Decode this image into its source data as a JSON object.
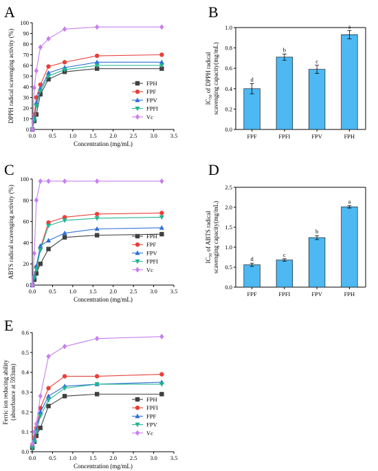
{
  "chart_data": [
    {
      "type": "line",
      "panel_letter": "A",
      "xlabel": "Concentration (mg/mL)",
      "ylabel": "DPPH radical scavenging activity (%)",
      "xlim": [
        0,
        3.5
      ],
      "ylim": [
        0,
        100
      ],
      "xticks": [
        "0.0",
        "0.5",
        "1.0",
        "1.5",
        "2.0",
        "2.5",
        "3.0",
        "3.5"
      ],
      "yticks": [
        "0",
        "10",
        "20",
        "30",
        "40",
        "50",
        "60",
        "70",
        "80",
        "90",
        "100"
      ],
      "legend_position": "right",
      "grid": false,
      "x": [
        0,
        0.05,
        0.1,
        0.2,
        0.4,
        0.8,
        1.6,
        3.2
      ],
      "series": [
        {
          "name": "FPH",
          "color": "#404040",
          "marker": "square",
          "values": [
            0,
            8,
            14,
            33,
            47,
            54,
            57,
            57
          ]
        },
        {
          "name": "FPF",
          "color": "#e8403a",
          "marker": "circle",
          "values": [
            0,
            14,
            30,
            42,
            59,
            63,
            69,
            70
          ]
        },
        {
          "name": "FPV",
          "color": "#2f6fd8",
          "marker": "triangle-up",
          "values": [
            0,
            10,
            25,
            38,
            53,
            58,
            63,
            63
          ]
        },
        {
          "name": "FPFI",
          "color": "#1fb592",
          "marker": "triangle-down",
          "values": [
            0,
            9,
            22,
            36,
            50,
            56,
            60,
            60
          ]
        },
        {
          "name": "Vc",
          "color": "#c77ff0",
          "marker": "diamond",
          "values": [
            0,
            39,
            55,
            77,
            85,
            94,
            96,
            96
          ]
        }
      ]
    },
    {
      "type": "bar",
      "panel_letter": "B",
      "xlabel": "",
      "ylabel_lines": [
        "IC",
        "50",
        " of DPPH radical",
        "scavenging capacity(mg/mL)"
      ],
      "ylim": [
        0,
        1.0
      ],
      "yticks": [
        "0.0",
        "0.2",
        "0.4",
        "0.6",
        "0.8",
        "1.0"
      ],
      "categories": [
        "FPF",
        "FPFI",
        "FPV",
        "FPH"
      ],
      "values": [
        0.4,
        0.71,
        0.59,
        0.93
      ],
      "errors": [
        0.05,
        0.03,
        0.04,
        0.04
      ],
      "letters": [
        "d",
        "b",
        "c",
        "a"
      ],
      "color": "#4db8f2"
    },
    {
      "type": "line",
      "panel_letter": "C",
      "xlabel": "Concentration (mg/mL)",
      "ylabel": "ABTS radical scavenging activity (%)",
      "xlim": [
        0,
        3.5
      ],
      "ylim": [
        0,
        100
      ],
      "xticks": [
        "0.0",
        "0.5",
        "1.0",
        "1.5",
        "2.0",
        "2.5",
        "3.0",
        "3.5"
      ],
      "yticks": [
        "0",
        "20",
        "40",
        "60",
        "80",
        "100"
      ],
      "legend_position": "right",
      "grid": false,
      "x": [
        0,
        0.05,
        0.1,
        0.2,
        0.4,
        0.8,
        1.6,
        3.2
      ],
      "series": [
        {
          "name": "FPH",
          "color": "#404040",
          "marker": "square",
          "values": [
            0,
            5,
            11,
            20,
            34,
            45,
            47,
            48
          ]
        },
        {
          "name": "FPF",
          "color": "#e8403a",
          "marker": "circle",
          "values": [
            0,
            8,
            17,
            35,
            59,
            64,
            67,
            68
          ]
        },
        {
          "name": "FPV",
          "color": "#2f6fd8",
          "marker": "triangle-up",
          "values": [
            0,
            8,
            18,
            37,
            42,
            49,
            53,
            54
          ]
        },
        {
          "name": "FPFI",
          "color": "#1fb592",
          "marker": "triangle-down",
          "values": [
            0,
            7,
            15,
            33,
            56,
            61,
            63,
            64
          ]
        },
        {
          "name": "Vc",
          "color": "#c77ff0",
          "marker": "diamond",
          "values": [
            0,
            30,
            80,
            98,
            98,
            98,
            98,
            98
          ]
        }
      ]
    },
    {
      "type": "bar",
      "panel_letter": "D",
      "xlabel": "",
      "ylabel_lines": [
        "IC",
        "50",
        " of ABTS radical",
        "scavenging capacity(mg/mL)"
      ],
      "ylim": [
        0,
        2.5
      ],
      "yticks": [
        "0.0",
        "0.5",
        "1.0",
        "1.5",
        "2.0",
        "2.5"
      ],
      "categories": [
        "FPF",
        "FPFI",
        "FPV",
        "FPH"
      ],
      "values": [
        0.56,
        0.68,
        1.24,
        2.01
      ],
      "errors": [
        0.04,
        0.03,
        0.05,
        0.03
      ],
      "letters": [
        "d",
        "c",
        "b",
        "a"
      ],
      "color": "#4db8f2"
    },
    {
      "type": "line",
      "panel_letter": "E",
      "xlabel": "Concentration (mg/mL)",
      "ylabel_lines": [
        "Ferric ion reducing ability",
        "(absorbance at 593nm)"
      ],
      "xlim": [
        0,
        3.5
      ],
      "ylim": [
        0,
        0.6
      ],
      "xticks": [
        "0.0",
        "0.5",
        "1.0",
        "1.5",
        "2.0",
        "2.5",
        "3.0",
        "3.5"
      ],
      "yticks": [
        "0.0",
        "0.1",
        "0.2",
        "0.3",
        "0.4",
        "0.5",
        "0.6"
      ],
      "legend_position": "right",
      "grid": false,
      "x": [
        0,
        0.05,
        0.1,
        0.2,
        0.4,
        0.8,
        1.6,
        3.2
      ],
      "series": [
        {
          "name": "FPH",
          "color": "#404040",
          "marker": "square",
          "values": [
            0.02,
            0.05,
            0.08,
            0.12,
            0.23,
            0.28,
            0.29,
            0.29
          ]
        },
        {
          "name": "FPFI",
          "color": "#e8403a",
          "marker": "circle",
          "values": [
            0.03,
            0.07,
            0.12,
            0.22,
            0.32,
            0.38,
            0.38,
            0.39
          ]
        },
        {
          "name": "FPF",
          "color": "#2f6fd8",
          "marker": "triangle-up",
          "values": [
            0.03,
            0.06,
            0.11,
            0.2,
            0.28,
            0.33,
            0.34,
            0.35
          ]
        },
        {
          "name": "FPV",
          "color": "#1fb592",
          "marker": "triangle-down",
          "values": [
            0.02,
            0.05,
            0.1,
            0.18,
            0.26,
            0.32,
            0.34,
            0.34
          ]
        },
        {
          "name": "Vc",
          "color": "#c77ff0",
          "marker": "diamond",
          "values": [
            0.04,
            0.1,
            0.14,
            0.28,
            0.48,
            0.53,
            0.57,
            0.58
          ]
        }
      ]
    }
  ]
}
